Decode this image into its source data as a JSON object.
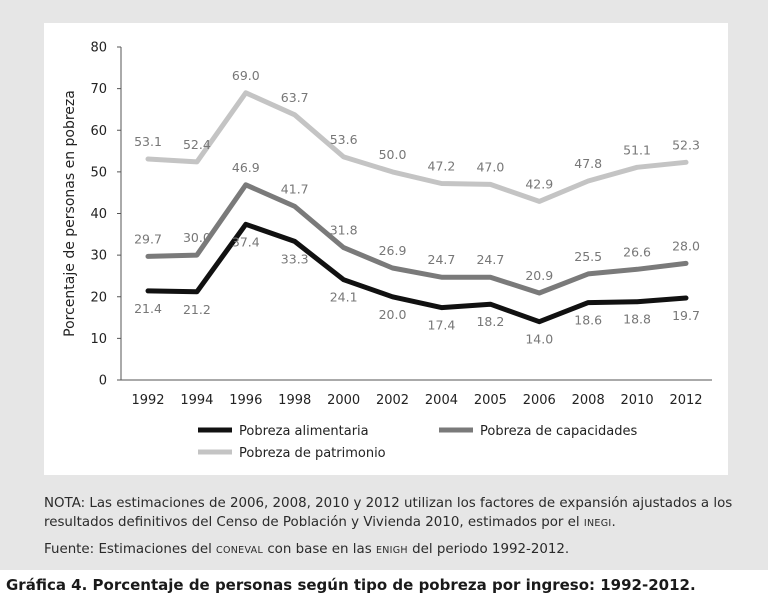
{
  "chart_data": {
    "type": "line",
    "ylabel": "Porcentaje de personas en pobreza",
    "ylim": [
      0,
      80
    ],
    "yticks": [
      0,
      10,
      20,
      30,
      40,
      50,
      60,
      70,
      80
    ],
    "categories": [
      "1992",
      "1994",
      "1996",
      "1998",
      "2000",
      "2002",
      "2004",
      "2005",
      "2006",
      "2008",
      "2010",
      "2012"
    ],
    "series": [
      {
        "name": "Pobreza alimentaria",
        "color": "#111111",
        "label_pos": "below",
        "values": [
          21.4,
          21.2,
          37.4,
          33.3,
          24.1,
          20.0,
          17.4,
          18.2,
          14.0,
          18.6,
          18.8,
          19.7
        ],
        "labels": [
          "21.4",
          "21.2",
          "37.4",
          "33.3",
          "24.1",
          "20.0",
          "17.4",
          "18.2",
          "14.0",
          "18.6",
          "18.8",
          "19.7"
        ]
      },
      {
        "name": "Pobreza de capacidades",
        "color": "#7a7a7a",
        "label_pos": "above",
        "values": [
          29.7,
          30.0,
          46.9,
          41.7,
          31.8,
          26.9,
          24.7,
          24.7,
          20.9,
          25.5,
          26.6,
          28.0
        ],
        "labels": [
          "29.7",
          "30.0",
          "46.9",
          "41.7",
          "31.8",
          "26.9",
          "24.7",
          "24.7",
          "20.9",
          "25.5",
          "26.6",
          "28.0"
        ]
      },
      {
        "name": "Pobreza de patrimonio",
        "color": "#c4c4c4",
        "label_pos": "above",
        "values": [
          53.1,
          52.4,
          69.0,
          63.7,
          53.6,
          50.0,
          47.2,
          47.0,
          42.9,
          47.8,
          51.1,
          52.3
        ],
        "labels": [
          "53.1",
          "52.4",
          "69.0",
          "63.7",
          "53.6",
          "50.0",
          "47.2",
          "47.0",
          "42.9",
          "47.8",
          "51.1",
          "52.3"
        ]
      }
    ],
    "legend_position": "bottom",
    "grid": false
  },
  "notes": {
    "nota_prefix": "NOTA: Las estimaciones de 2006, 2008, 2010 y 2012 utilizan los factores de expansión ajustados a los resultados definitivos del Censo de Población y Vivienda 2010, estimados por el ",
    "nota_abbr": "INEGI",
    "nota_suffix": ".",
    "fuente_prefix": "Fuente: Estimaciones del ",
    "fuente_abbr1": "CONEVAL",
    "fuente_mid": " con base en las ",
    "fuente_abbr2": "ENIGH",
    "fuente_suffix": " del periodo 1992-2012."
  },
  "caption": "Gráfica  4. Porcentaje de personas según tipo de pobreza por ingreso: 1992-2012."
}
